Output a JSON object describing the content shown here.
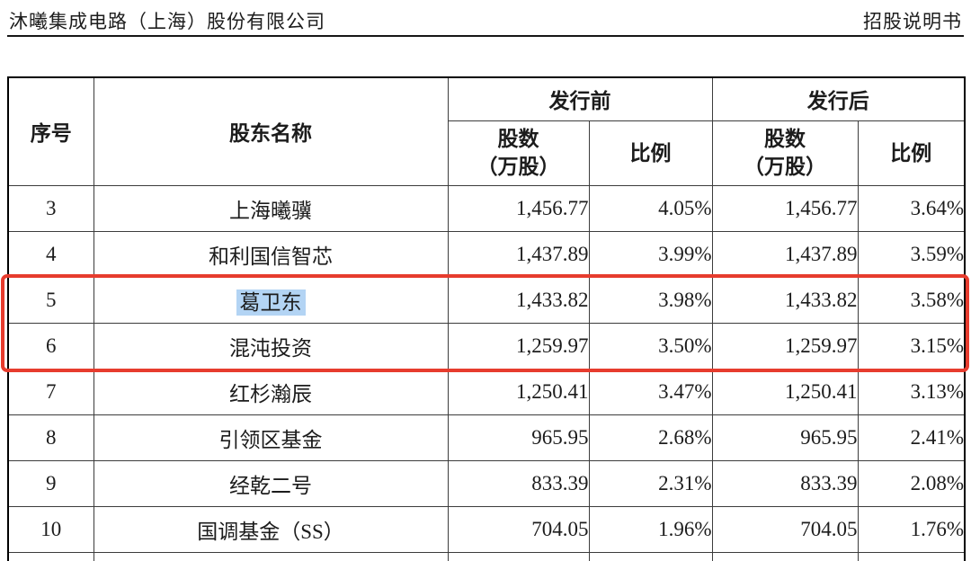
{
  "page": {
    "header_left": "沐曦集成电路（上海）股份有限公司",
    "header_right": "招股说明书"
  },
  "table": {
    "headers": {
      "index": "序号",
      "name": "股东名称",
      "pre": "发行前",
      "post": "发行后",
      "shares_l1": "股数",
      "shares_l2": "（万股）",
      "ratio": "比例"
    },
    "rows": [
      {
        "no": "3",
        "name": "上海曦骥",
        "pre_shares": "1,456.77",
        "pre_ratio": "4.05%",
        "post_shares": "1,456.77",
        "post_ratio": "3.64%",
        "highlighted": false
      },
      {
        "no": "4",
        "name": "和利国信智芯",
        "pre_shares": "1,437.89",
        "pre_ratio": "3.99%",
        "post_shares": "1,437.89",
        "post_ratio": "3.59%",
        "highlighted": false
      },
      {
        "no": "5",
        "name": "葛卫东",
        "pre_shares": "1,433.82",
        "pre_ratio": "3.98%",
        "post_shares": "1,433.82",
        "post_ratio": "3.58%",
        "highlighted": true
      },
      {
        "no": "6",
        "name": "混沌投资",
        "pre_shares": "1,259.97",
        "pre_ratio": "3.50%",
        "post_shares": "1,259.97",
        "post_ratio": "3.15%",
        "highlighted": false
      },
      {
        "no": "7",
        "name": "红杉瀚辰",
        "pre_shares": "1,250.41",
        "pre_ratio": "3.47%",
        "post_shares": "1,250.41",
        "post_ratio": "3.13%",
        "highlighted": false
      },
      {
        "no": "8",
        "name": "引领区基金",
        "pre_shares": "965.95",
        "pre_ratio": "2.68%",
        "post_shares": "965.95",
        "post_ratio": "2.41%",
        "highlighted": false
      },
      {
        "no": "9",
        "name": "经乾二号",
        "pre_shares": "833.39",
        "pre_ratio": "2.31%",
        "post_shares": "833.39",
        "post_ratio": "2.08%",
        "highlighted": false
      },
      {
        "no": "10",
        "name": "国调基金（SS）",
        "pre_shares": "704.05",
        "pre_ratio": "1.96%",
        "post_shares": "704.05",
        "post_ratio": "1.76%",
        "highlighted": false
      }
    ]
  },
  "annotations": {
    "red_box": {
      "around_rows": "5-6",
      "color": "#e73c2e"
    },
    "selection_highlight": {
      "text": "葛卫东",
      "color": "#b3d4f4"
    }
  }
}
